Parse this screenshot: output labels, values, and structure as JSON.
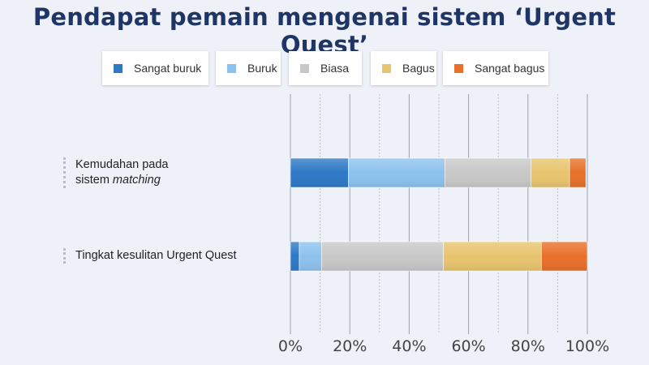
{
  "title": "Pendapat pemain mengenai sistem ‘Urgent Quest’",
  "legend": [
    {
      "label": "Sangat buruk",
      "color": "#2e78c6"
    },
    {
      "label": "Buruk",
      "color": "#8cc2ee"
    },
    {
      "label": "Biasa",
      "color": "#c8c8c8"
    },
    {
      "label": "Bagus",
      "color": "#e7c46e"
    },
    {
      "label": "Sangat bagus",
      "color": "#e8702a"
    }
  ],
  "categories": [
    {
      "line1": "Kemudahan pada",
      "line2_prefix": "sistem ",
      "line2_italic": "matching"
    },
    {
      "line1": "Tingkat kesulitan Urgent Quest"
    }
  ],
  "chart_data": {
    "type": "bar",
    "orientation": "horizontal",
    "stacked": true,
    "title": "Pendapat pemain mengenai sistem ‘Urgent Quest’",
    "categories": [
      "Kemudahan pada sistem matching",
      "Tingkat kesulitan Urgent Quest"
    ],
    "series": [
      {
        "name": "Sangat buruk",
        "color": "#2e78c6",
        "values": [
          19.5,
          3
        ]
      },
      {
        "name": "Buruk",
        "color": "#8cc2ee",
        "values": [
          32.5,
          7.5
        ]
      },
      {
        "name": "Biasa",
        "color": "#c8c8c8",
        "values": [
          29,
          41
        ]
      },
      {
        "name": "Bagus",
        "color": "#e7c46e",
        "values": [
          13,
          33
        ]
      },
      {
        "name": "Sangat bagus",
        "color": "#e8702a",
        "values": [
          5.5,
          15.5
        ]
      }
    ],
    "xlim": [
      0,
      100
    ],
    "xticks": [
      "0%",
      "20%",
      "40%",
      "60%",
      "80%",
      "100%"
    ],
    "grid": true,
    "legend_position": "top"
  }
}
